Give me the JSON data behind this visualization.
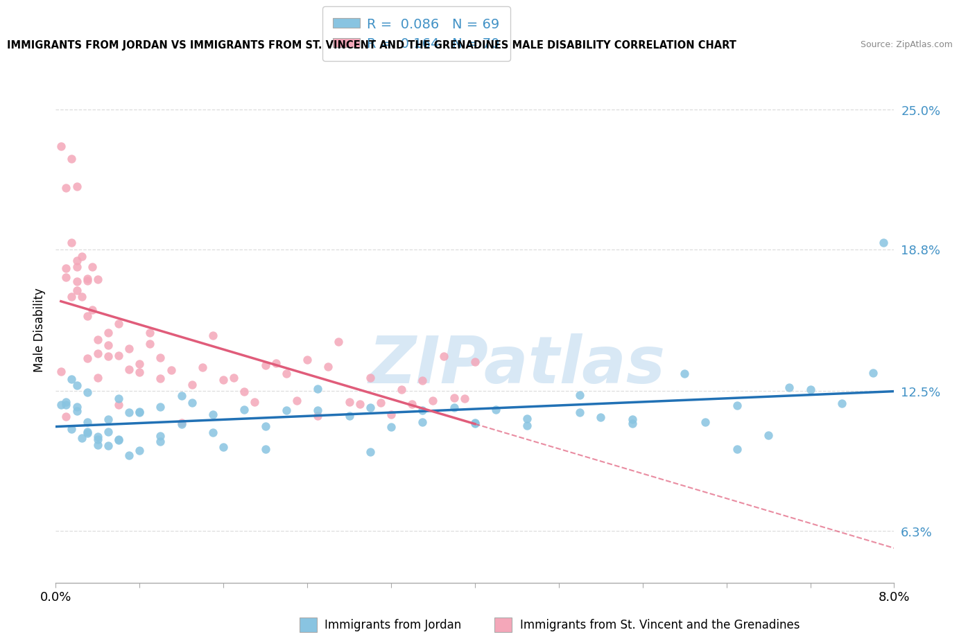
{
  "title": "IMMIGRANTS FROM JORDAN VS IMMIGRANTS FROM ST. VINCENT AND THE GRENADINES MALE DISABILITY CORRELATION CHART",
  "source": "Source: ZipAtlas.com",
  "xlabel_jordan": "Immigrants from Jordan",
  "xlabel_stvincent": "Immigrants from St. Vincent and the Grenadines",
  "ylabel": "Male Disability",
  "xmin": 0.0,
  "xmax": 0.08,
  "ymin": 0.04,
  "ymax": 0.265,
  "yticks": [
    0.063,
    0.125,
    0.188,
    0.25
  ],
  "ytick_labels": [
    "6.3%",
    "12.5%",
    "18.8%",
    "25.0%"
  ],
  "xticks": [
    0.0,
    0.08
  ],
  "xtick_labels": [
    "0.0%",
    "8.0%"
  ],
  "R_jordan": 0.086,
  "N_jordan": 69,
  "R_stvincent": 0.164,
  "N_stvincent": 70,
  "color_jordan": "#89c4e1",
  "color_stvincent": "#f4a7b9",
  "trend_jordan_color": "#2171b5",
  "trend_stvincent_color": "#e05c7a",
  "watermark_text": "ZIPatlas",
  "watermark_color": "#d8e8f5",
  "background_color": "#ffffff",
  "grid_color": "#dddddd",
  "ytick_color": "#4292c6",
  "jordan_x": [
    0.0005,
    0.001,
    0.001,
    0.0015,
    0.0015,
    0.002,
    0.002,
    0.002,
    0.0025,
    0.003,
    0.003,
    0.003,
    0.003,
    0.004,
    0.004,
    0.004,
    0.005,
    0.005,
    0.005,
    0.006,
    0.006,
    0.006,
    0.007,
    0.007,
    0.008,
    0.008,
    0.008,
    0.01,
    0.01,
    0.01,
    0.012,
    0.012,
    0.013,
    0.015,
    0.015,
    0.016,
    0.018,
    0.02,
    0.02,
    0.022,
    0.025,
    0.025,
    0.028,
    0.03,
    0.03,
    0.032,
    0.035,
    0.035,
    0.038,
    0.04,
    0.04,
    0.042,
    0.045,
    0.045,
    0.05,
    0.05,
    0.052,
    0.055,
    0.055,
    0.06,
    0.062,
    0.065,
    0.065,
    0.068,
    0.07,
    0.072,
    0.075,
    0.078,
    0.079
  ],
  "jordan_y": [
    0.115,
    0.12,
    0.115,
    0.118,
    0.11,
    0.12,
    0.115,
    0.11,
    0.108,
    0.12,
    0.115,
    0.11,
    0.105,
    0.12,
    0.115,
    0.108,
    0.115,
    0.11,
    0.108,
    0.115,
    0.11,
    0.105,
    0.115,
    0.108,
    0.12,
    0.115,
    0.108,
    0.115,
    0.11,
    0.105,
    0.115,
    0.108,
    0.12,
    0.115,
    0.108,
    0.11,
    0.115,
    0.115,
    0.12,
    0.115,
    0.12,
    0.115,
    0.115,
    0.12,
    0.11,
    0.115,
    0.115,
    0.108,
    0.115,
    0.125,
    0.108,
    0.12,
    0.115,
    0.108,
    0.115,
    0.108,
    0.12,
    0.115,
    0.108,
    0.125,
    0.115,
    0.12,
    0.108,
    0.115,
    0.12,
    0.115,
    0.12,
    0.125,
    0.188
  ],
  "stvincent_x": [
    0.0005,
    0.0005,
    0.001,
    0.001,
    0.001,
    0.001,
    0.0015,
    0.0015,
    0.0015,
    0.002,
    0.002,
    0.002,
    0.002,
    0.002,
    0.0025,
    0.0025,
    0.003,
    0.003,
    0.003,
    0.003,
    0.0035,
    0.0035,
    0.004,
    0.004,
    0.004,
    0.004,
    0.005,
    0.005,
    0.005,
    0.006,
    0.006,
    0.006,
    0.007,
    0.007,
    0.008,
    0.008,
    0.009,
    0.009,
    0.01,
    0.01,
    0.011,
    0.012,
    0.013,
    0.014,
    0.015,
    0.016,
    0.017,
    0.018,
    0.019,
    0.02,
    0.021,
    0.022,
    0.023,
    0.024,
    0.025,
    0.026,
    0.027,
    0.028,
    0.029,
    0.03,
    0.031,
    0.032,
    0.033,
    0.034,
    0.035,
    0.036,
    0.037,
    0.038,
    0.039,
    0.04
  ],
  "stvincent_y": [
    0.24,
    0.13,
    0.2,
    0.18,
    0.16,
    0.14,
    0.22,
    0.19,
    0.17,
    0.215,
    0.2,
    0.185,
    0.17,
    0.155,
    0.19,
    0.175,
    0.18,
    0.165,
    0.155,
    0.145,
    0.175,
    0.16,
    0.165,
    0.155,
    0.145,
    0.135,
    0.16,
    0.148,
    0.138,
    0.155,
    0.143,
    0.133,
    0.148,
    0.138,
    0.145,
    0.135,
    0.142,
    0.132,
    0.138,
    0.128,
    0.135,
    0.13,
    0.128,
    0.135,
    0.125,
    0.132,
    0.128,
    0.125,
    0.132,
    0.125,
    0.13,
    0.125,
    0.13,
    0.125,
    0.128,
    0.13,
    0.125,
    0.13,
    0.125,
    0.13,
    0.125,
    0.13,
    0.125,
    0.13,
    0.125,
    0.13,
    0.125,
    0.13,
    0.125,
    0.13
  ],
  "legend_R_color": "#4292c6",
  "legend_N_color": "#4292c6"
}
